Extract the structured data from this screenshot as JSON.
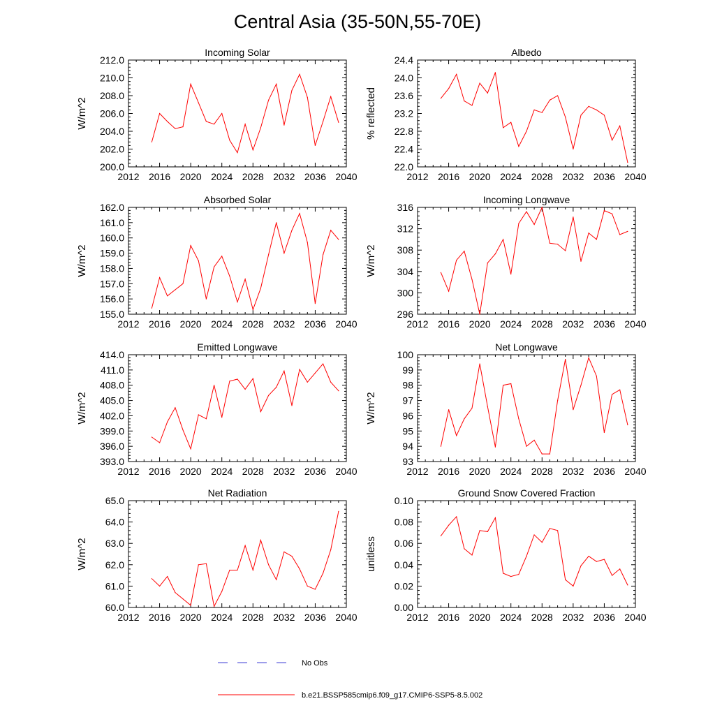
{
  "title": "Central Asia (35-50N,55-70E)",
  "legend": {
    "obs_label": "No Obs",
    "model_label": "b.e21.BSSP585cmip6.f09_g17.CMIP6-SSP5-8.5.002",
    "obs_color": "#3b3bd6",
    "model_color": "#ff0000"
  },
  "chart_data": [
    {
      "type": "line",
      "title": "Incoming Solar",
      "xlabel": "",
      "ylabel": "W/m^2",
      "xlim": [
        2012,
        2040
      ],
      "ylim": [
        200,
        212
      ],
      "grid": false,
      "xticks": [
        "2012",
        "2016",
        "2020",
        "2024",
        "2028",
        "2032",
        "2036",
        "2040"
      ],
      "yticks": [
        "200.0",
        "202.0",
        "204.0",
        "206.0",
        "208.0",
        "210.0",
        "212.0"
      ],
      "x": [
        2015,
        2016,
        2017,
        2018,
        2019,
        2020,
        2021,
        2022,
        2023,
        2024,
        2025,
        2026,
        2027,
        2028,
        2029,
        2030,
        2031,
        2032,
        2033,
        2034,
        2035,
        2036,
        2037,
        2038,
        2039
      ],
      "series": [
        {
          "color": "#ff0000",
          "values": [
            202.8,
            206.0,
            205.1,
            204.3,
            204.5,
            209.3,
            207.2,
            205.1,
            204.8,
            206.0,
            203.0,
            201.6,
            204.8,
            201.9,
            204.4,
            207.5,
            209.3,
            204.7,
            208.6,
            210.4,
            207.8,
            202.4,
            205.1,
            207.9,
            205.0
          ]
        }
      ]
    },
    {
      "type": "line",
      "title": "Albedo",
      "xlabel": "",
      "ylabel": "% reflected",
      "xlim": [
        2012,
        2040
      ],
      "ylim": [
        22.0,
        24.4
      ],
      "grid": false,
      "xticks": [
        "2012",
        "2016",
        "2020",
        "2024",
        "2028",
        "2032",
        "2036",
        "2040"
      ],
      "yticks": [
        "22.0",
        "22.4",
        "22.8",
        "23.2",
        "23.6",
        "24.0",
        "24.4"
      ],
      "x": [
        2015,
        2016,
        2017,
        2018,
        2019,
        2020,
        2021,
        2022,
        2023,
        2024,
        2025,
        2026,
        2027,
        2028,
        2029,
        2030,
        2031,
        2032,
        2033,
        2034,
        2035,
        2036,
        2037,
        2038,
        2039
      ],
      "series": [
        {
          "color": "#ff0000",
          "values": [
            23.54,
            23.76,
            24.08,
            23.48,
            23.38,
            23.88,
            23.66,
            24.12,
            22.88,
            23.0,
            22.46,
            22.8,
            23.28,
            23.22,
            23.5,
            23.6,
            23.12,
            22.4,
            23.16,
            23.36,
            23.28,
            23.16,
            22.6,
            22.92,
            22.1
          ]
        }
      ]
    },
    {
      "type": "line",
      "title": "Absorbed Solar",
      "xlabel": "",
      "ylabel": "W/m^2",
      "xlim": [
        2012,
        2040
      ],
      "ylim": [
        155,
        162
      ],
      "grid": false,
      "xticks": [
        "2012",
        "2016",
        "2020",
        "2024",
        "2028",
        "2032",
        "2036",
        "2040"
      ],
      "yticks": [
        "155.0",
        "156.0",
        "157.0",
        "158.0",
        "159.0",
        "160.0",
        "161.0",
        "162.0"
      ],
      "x": [
        2015,
        2016,
        2017,
        2018,
        2019,
        2020,
        2021,
        2022,
        2023,
        2024,
        2025,
        2026,
        2027,
        2028,
        2029,
        2030,
        2031,
        2032,
        2033,
        2034,
        2035,
        2036,
        2037,
        2038,
        2039
      ],
      "series": [
        {
          "color": "#ff0000",
          "values": [
            155.4,
            157.4,
            156.2,
            156.6,
            157.0,
            159.5,
            158.5,
            156.0,
            158.1,
            158.8,
            157.5,
            155.8,
            157.3,
            155.3,
            156.7,
            158.9,
            161.0,
            159.0,
            160.5,
            161.6,
            159.7,
            155.7,
            158.9,
            160.5,
            159.9
          ]
        }
      ]
    },
    {
      "type": "line",
      "title": "Incoming Longwave",
      "xlabel": "",
      "ylabel": "W/m^2",
      "xlim": [
        2012,
        2040
      ],
      "ylim": [
        296,
        316
      ],
      "grid": false,
      "xticks": [
        "2012",
        "2016",
        "2020",
        "2024",
        "2028",
        "2032",
        "2036",
        "2040"
      ],
      "yticks": [
        "296",
        "300",
        "304",
        "308",
        "312",
        "316"
      ],
      "x": [
        2015,
        2016,
        2017,
        2018,
        2019,
        2020,
        2021,
        2022,
        2023,
        2024,
        2025,
        2026,
        2027,
        2028,
        2029,
        2030,
        2031,
        2032,
        2033,
        2034,
        2035,
        2036,
        2037,
        2038,
        2039
      ],
      "series": [
        {
          "color": "#ff0000",
          "values": [
            303.8,
            300.3,
            306.1,
            307.8,
            302.5,
            296.0,
            305.6,
            307.3,
            310.0,
            303.5,
            313.0,
            315.2,
            312.8,
            316.0,
            309.3,
            309.1,
            307.9,
            314.2,
            305.9,
            311.2,
            310.0,
            315.4,
            314.8,
            310.9,
            311.5
          ]
        }
      ]
    },
    {
      "type": "line",
      "title": "Emitted Longwave",
      "xlabel": "",
      "ylabel": "W/m^2",
      "xlim": [
        2012,
        2040
      ],
      "ylim": [
        393,
        414
      ],
      "grid": false,
      "xticks": [
        "2012",
        "2016",
        "2020",
        "2024",
        "2028",
        "2032",
        "2036",
        "2040"
      ],
      "yticks": [
        "393.0",
        "396.0",
        "399.0",
        "402.0",
        "405.0",
        "408.0",
        "411.0",
        "414.0"
      ],
      "x": [
        2015,
        2016,
        2017,
        2018,
        2019,
        2020,
        2021,
        2022,
        2023,
        2024,
        2025,
        2026,
        2027,
        2028,
        2029,
        2030,
        2031,
        2032,
        2033,
        2034,
        2035,
        2036,
        2037,
        2038,
        2039
      ],
      "series": [
        {
          "color": "#ff0000",
          "values": [
            397.8,
            396.7,
            400.8,
            403.6,
            399.2,
            395.5,
            402.2,
            401.4,
            408.0,
            401.7,
            408.8,
            409.2,
            407.2,
            409.3,
            402.8,
            406.0,
            407.6,
            410.8,
            404.0,
            411.1,
            408.6,
            410.4,
            412.2,
            408.6,
            406.9
          ]
        }
      ]
    },
    {
      "type": "line",
      "title": "Net Longwave",
      "xlabel": "",
      "ylabel": "W/m^2",
      "xlim": [
        2012,
        2040
      ],
      "ylim": [
        93,
        100
      ],
      "grid": false,
      "xticks": [
        "2012",
        "2016",
        "2020",
        "2024",
        "2028",
        "2032",
        "2036",
        "2040"
      ],
      "yticks": [
        "93",
        "94",
        "95",
        "96",
        "97",
        "98",
        "99",
        "100"
      ],
      "x": [
        2015,
        2016,
        2017,
        2018,
        2019,
        2020,
        2021,
        2022,
        2023,
        2024,
        2025,
        2026,
        2027,
        2028,
        2029,
        2030,
        2031,
        2032,
        2033,
        2034,
        2035,
        2036,
        2037,
        2038,
        2039
      ],
      "series": [
        {
          "color": "#ff0000",
          "values": [
            94.0,
            96.4,
            94.7,
            95.8,
            96.5,
            99.4,
            96.6,
            93.95,
            98.0,
            98.1,
            95.8,
            94.0,
            94.4,
            93.5,
            93.5,
            97.0,
            99.7,
            96.4,
            98.0,
            99.8,
            98.6,
            94.9,
            97.4,
            97.7,
            95.4
          ]
        }
      ]
    },
    {
      "type": "line",
      "title": "Net Radiation",
      "xlabel": "",
      "ylabel": "W/m^2",
      "xlim": [
        2012,
        2040
      ],
      "ylim": [
        60,
        65
      ],
      "grid": false,
      "xticks": [
        "2012",
        "2016",
        "2020",
        "2024",
        "2028",
        "2032",
        "2036",
        "2040"
      ],
      "yticks": [
        "60.0",
        "61.0",
        "62.0",
        "63.0",
        "64.0",
        "65.0"
      ],
      "x": [
        2015,
        2016,
        2017,
        2018,
        2019,
        2020,
        2021,
        2022,
        2023,
        2024,
        2025,
        2026,
        2027,
        2028,
        2029,
        2030,
        2031,
        2032,
        2033,
        2034,
        2035,
        2036,
        2037,
        2038,
        2039
      ],
      "series": [
        {
          "color": "#ff0000",
          "values": [
            61.35,
            61.0,
            61.45,
            60.7,
            60.4,
            60.1,
            62.0,
            62.05,
            60.05,
            60.75,
            61.75,
            61.75,
            62.9,
            61.75,
            63.15,
            62.0,
            61.3,
            62.6,
            62.4,
            61.8,
            61.0,
            60.85,
            61.6,
            62.7,
            64.5
          ]
        }
      ]
    },
    {
      "type": "line",
      "title": "Ground Snow Covered Fraction",
      "xlabel": "",
      "ylabel": "unitless",
      "xlim": [
        2012,
        2040
      ],
      "ylim": [
        0.0,
        0.1
      ],
      "grid": false,
      "xticks": [
        "2012",
        "2016",
        "2020",
        "2024",
        "2028",
        "2032",
        "2036",
        "2040"
      ],
      "yticks": [
        "0.00",
        "0.02",
        "0.04",
        "0.06",
        "0.08",
        "0.10"
      ],
      "x": [
        2015,
        2016,
        2017,
        2018,
        2019,
        2020,
        2021,
        2022,
        2023,
        2024,
        2025,
        2026,
        2027,
        2028,
        2029,
        2030,
        2031,
        2032,
        2033,
        2034,
        2035,
        2036,
        2037,
        2038,
        2039
      ],
      "series": [
        {
          "color": "#ff0000",
          "values": [
            0.067,
            0.077,
            0.085,
            0.055,
            0.049,
            0.072,
            0.071,
            0.084,
            0.032,
            0.029,
            0.031,
            0.048,
            0.068,
            0.061,
            0.074,
            0.072,
            0.026,
            0.02,
            0.039,
            0.048,
            0.043,
            0.045,
            0.03,
            0.036,
            0.021
          ]
        }
      ]
    }
  ]
}
